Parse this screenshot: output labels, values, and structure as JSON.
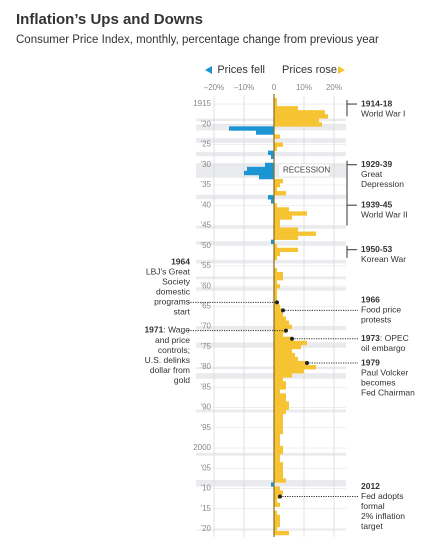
{
  "chart_data": {
    "type": "bar",
    "orientation": "horizontal",
    "title": "Inflation’s Ups and Downs",
    "subtitle": "Consumer Price Index, monthly, percentage change from previous year",
    "legend": [
      {
        "name": "Prices fell",
        "color": "#1b95d3"
      },
      {
        "name": "Prices rose",
        "color": "#f6c432"
      }
    ],
    "x": [
      1914,
      1915,
      1916,
      1917,
      1918,
      1919,
      1920,
      1921,
      1922,
      1923,
      1924,
      1925,
      1926,
      1927,
      1928,
      1929,
      1930,
      1931,
      1932,
      1933,
      1934,
      1935,
      1936,
      1937,
      1938,
      1939,
      1940,
      1941,
      1942,
      1943,
      1944,
      1945,
      1946,
      1947,
      1948,
      1949,
      1950,
      1951,
      1952,
      1953,
      1954,
      1955,
      1956,
      1957,
      1958,
      1959,
      1960,
      1961,
      1962,
      1963,
      1964,
      1965,
      1966,
      1967,
      1968,
      1969,
      1970,
      1971,
      1972,
      1973,
      1974,
      1975,
      1976,
      1977,
      1978,
      1979,
      1980,
      1981,
      1982,
      1983,
      1984,
      1985,
      1986,
      1987,
      1988,
      1989,
      1990,
      1991,
      1992,
      1993,
      1994,
      1995,
      1996,
      1997,
      1998,
      1999,
      2000,
      2001,
      2002,
      2003,
      2004,
      2005,
      2006,
      2007,
      2008,
      2009,
      2010,
      2011,
      2012,
      2013,
      2014,
      2015,
      2016,
      2017,
      2018,
      2019,
      2020,
      2021
    ],
    "values": [
      1,
      1,
      8,
      17,
      18,
      15,
      16,
      -15,
      -6,
      2,
      0,
      3,
      1,
      -2,
      -1,
      0,
      -3,
      -9,
      -10,
      -5,
      3,
      2,
      1,
      4,
      -2,
      -1,
      1,
      5,
      11,
      6,
      2,
      2,
      8,
      14,
      8,
      -1,
      1,
      8,
      2,
      1,
      0,
      0,
      1,
      3,
      3,
      1,
      2,
      1,
      1,
      1,
      1,
      2,
      3,
      3,
      4,
      5,
      6,
      4,
      3,
      6,
      11,
      9,
      6,
      7,
      8,
      11,
      14,
      10,
      6,
      3,
      4,
      4,
      2,
      4,
      4,
      5,
      5,
      4,
      3,
      3,
      3,
      3,
      3,
      2,
      2,
      2,
      3,
      3,
      2,
      2,
      3,
      3,
      3,
      3,
      4,
      -1,
      2,
      3,
      2,
      1,
      2,
      0,
      1,
      2,
      2,
      2,
      1,
      5
    ],
    "xlim": [
      -26,
      24
    ],
    "xticks": [
      {
        "value": -20,
        "label": "–20%"
      },
      {
        "value": -10,
        "label": "–10%"
      },
      0,
      {
        "value": 10,
        "label": "10%"
      },
      {
        "value": 20,
        "label": "20%"
      }
    ],
    "ylim": [
      1913,
      2022
    ],
    "yticks": [
      1915,
      {
        "value": 1920,
        "label": "’20"
      },
      {
        "value": 1925,
        "label": "’25"
      },
      {
        "value": 1930,
        "label": "’30"
      },
      {
        "value": 1935,
        "label": "’35"
      },
      {
        "value": 1940,
        "label": "’40"
      },
      {
        "value": 1945,
        "label": "’45"
      },
      {
        "value": 1950,
        "label": "’50"
      },
      {
        "value": 1955,
        "label": "’55"
      },
      {
        "value": 1960,
        "label": "’60"
      },
      {
        "value": 1965,
        "label": "’65"
      },
      {
        "value": 1970,
        "label": "’70"
      },
      {
        "value": 1975,
        "label": "’75"
      },
      {
        "value": 1980,
        "label": "’80"
      },
      {
        "value": 1985,
        "label": "’85"
      },
      {
        "value": 1990,
        "label": "’90"
      },
      {
        "value": 1995,
        "label": "’95"
      },
      2000,
      {
        "value": 2005,
        "label": "’05"
      },
      {
        "value": 2010,
        "label": "’10"
      },
      {
        "value": 2015,
        "label": "’15"
      },
      {
        "value": 2020,
        "label": "’20"
      }
    ],
    "recession_label": "RECESSION",
    "recessions": [
      [
        1918.6,
        1919.2
      ],
      [
        1920.0,
        1921.5
      ],
      [
        1923.4,
        1924.6
      ],
      [
        1926.8,
        1927.9
      ],
      [
        1929.6,
        1933.2
      ],
      [
        1937.4,
        1938.5
      ],
      [
        1945.1,
        1945.8
      ],
      [
        1948.9,
        1949.8
      ],
      [
        1953.5,
        1954.4
      ],
      [
        1957.6,
        1958.3
      ],
      [
        1960.3,
        1961.1
      ],
      [
        1969.9,
        1970.9
      ],
      [
        1973.9,
        1975.2
      ],
      [
        1980.0,
        1980.5
      ],
      [
        1981.5,
        1982.9
      ],
      [
        1990.5,
        1991.2
      ],
      [
        2001.2,
        2001.9
      ],
      [
        2007.9,
        2009.5
      ],
      [
        2020.1,
        2020.4
      ]
    ],
    "brackets": [
      {
        "label": "1914-18",
        "span": [
          1914,
          1918
        ],
        "lines": [
          "World War I"
        ]
      },
      {
        "label": "1929-39",
        "span": [
          1929,
          1939
        ],
        "lines": [
          "Great",
          "Depression"
        ]
      },
      {
        "label": "1939-45",
        "span": [
          1939,
          1945
        ],
        "lines": [
          "World War II"
        ]
      },
      {
        "label": "1950-53",
        "span": [
          1950,
          1953
        ],
        "lines": [
          "Korean War"
        ]
      }
    ],
    "notes": [
      {
        "year": 1964,
        "side": "left",
        "inline": false,
        "lines": [
          "LBJ's Great",
          "Society",
          "domestic",
          "programs",
          "start"
        ]
      },
      {
        "year": 1971,
        "side": "left",
        "inline": true,
        "lines": [
          ": Wage",
          "and price",
          "controls;",
          "U.S. delinks",
          "dollar from",
          "gold"
        ]
      },
      {
        "year": 1966,
        "side": "right",
        "inline": false,
        "lines": [
          "Food price",
          "protests"
        ]
      },
      {
        "year": 1973,
        "side": "right",
        "inline": true,
        "lines": [
          ": OPEC",
          "oil embargo"
        ]
      },
      {
        "year": 1979,
        "side": "right",
        "inline": false,
        "lines": [
          "Paul Volcker",
          "becomes",
          "Fed Chairman"
        ]
      },
      {
        "year": 2012,
        "side": "right",
        "inline": false,
        "lines": [
          "Fed adopts",
          "formal",
          "2% inflation",
          "target"
        ]
      }
    ]
  }
}
